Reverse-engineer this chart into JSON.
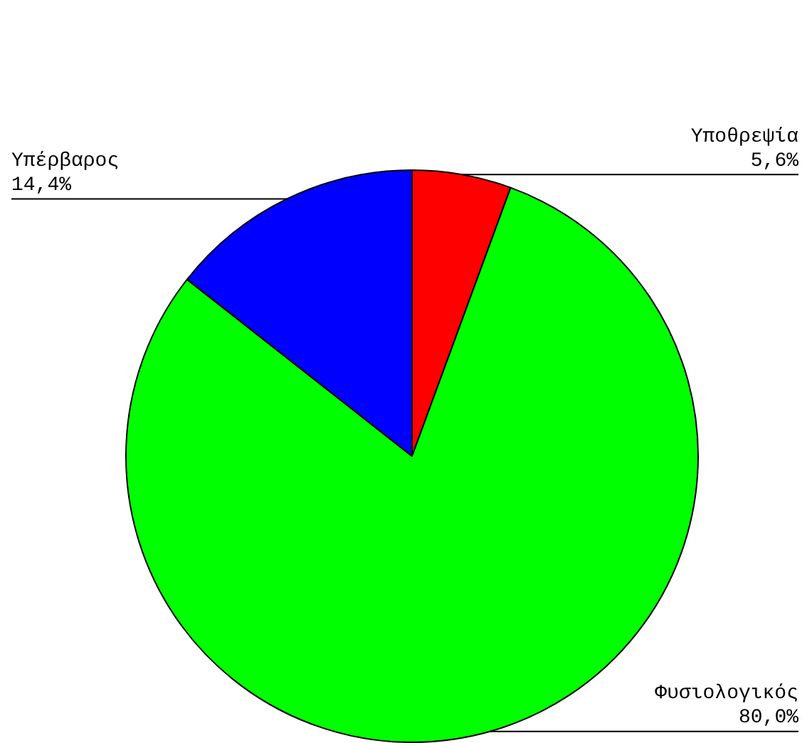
{
  "chart_data": {
    "type": "pie",
    "categories": [
      "Υποθρεψία",
      "Φυσιολογικός",
      "Υπέρβαρος"
    ],
    "values": [
      5.6,
      80.0,
      14.4
    ],
    "colors": [
      "#ff0000",
      "#00ff00",
      "#0000ff"
    ],
    "value_labels": [
      "5,6%",
      "80,0%",
      "14,4%"
    ],
    "legend": false
  }
}
